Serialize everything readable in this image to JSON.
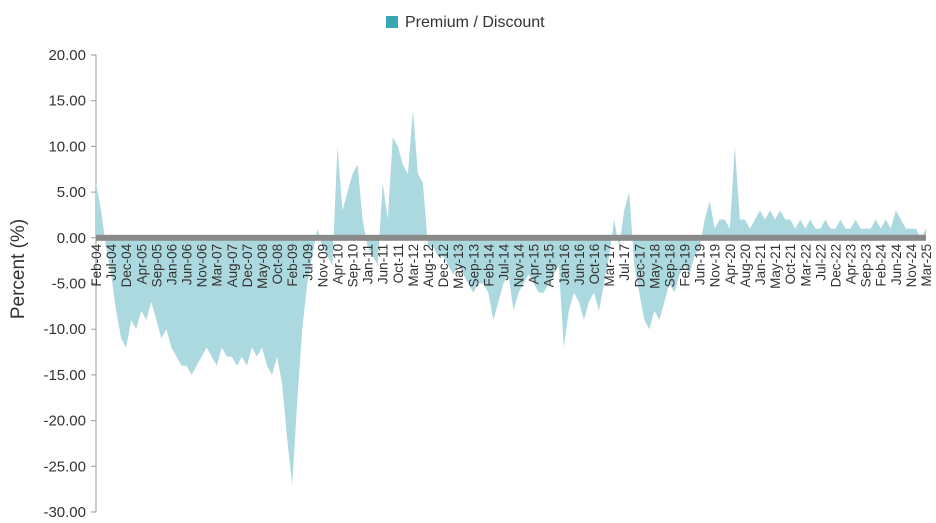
{
  "chart_data": {
    "type": "area",
    "y_label": "Percent (%)",
    "ylim": [
      -30,
      20
    ],
    "yticks": [
      {
        "value": 20,
        "label": "20.00"
      },
      {
        "value": 15,
        "label": "15.00"
      },
      {
        "value": 10,
        "label": "10.00"
      },
      {
        "value": 5,
        "label": "5.00"
      },
      {
        "value": 0,
        "label": "0.00"
      },
      {
        "value": -5,
        "label": "-5.00"
      },
      {
        "value": -10,
        "label": "-10.00"
      },
      {
        "value": -15,
        "label": "-15.00"
      },
      {
        "value": -20,
        "label": "-20.00"
      },
      {
        "value": -25,
        "label": "-25.00"
      },
      {
        "value": -30,
        "label": "-30.00"
      }
    ],
    "legend": "top",
    "categories": [
      "Feb-04",
      null,
      null,
      "Jul-04",
      null,
      null,
      "Dec-04",
      null,
      null,
      "Apr-05",
      null,
      null,
      "Sep-05",
      null,
      null,
      "Jan-06",
      null,
      null,
      "Jun-06",
      null,
      null,
      "Nov-06",
      null,
      null,
      "Mar-07",
      null,
      null,
      "Aug-07",
      null,
      null,
      "Dec-07",
      null,
      null,
      "May-08",
      null,
      null,
      "Oct-08",
      null,
      null,
      "Feb-09",
      null,
      null,
      "Jul-09",
      null,
      null,
      "Nov-09",
      null,
      null,
      "Apr-10",
      null,
      null,
      "Sep-10",
      null,
      null,
      "Jan-11",
      null,
      null,
      "Jun-11",
      null,
      null,
      "Oct-11",
      null,
      null,
      "Mar-12",
      null,
      null,
      "Aug-12",
      null,
      null,
      "Dec-12",
      null,
      null,
      "May-13",
      null,
      null,
      "Sep-13",
      null,
      null,
      "Feb-14",
      null,
      null,
      "Jul-14",
      null,
      null,
      "Nov-14",
      null,
      null,
      "Apr-15",
      null,
      null,
      "Aug-15",
      null,
      null,
      "Jan-16",
      null,
      null,
      "Jun-16",
      null,
      null,
      "Oct-16",
      null,
      null,
      "Mar-17",
      null,
      null,
      "Jul-17",
      null,
      null,
      "Dec-17",
      null,
      null,
      "May-18",
      null,
      null,
      "Sep-18",
      null,
      null,
      "Feb-19",
      null,
      null,
      "Jun-19",
      null,
      null,
      "Nov-19",
      null,
      null,
      "Apr-20",
      null,
      null,
      "Aug-20",
      null,
      null,
      "Jan-21",
      null,
      null,
      "May-21",
      null,
      null,
      "Oct-21",
      null,
      null,
      "Mar-22",
      null,
      null,
      "Jul-22",
      null,
      null,
      "Dec-22",
      null,
      null,
      "Apr-23",
      null,
      null,
      "Sep-23",
      null,
      null,
      "Feb-24",
      null,
      null,
      "Jun-24",
      null,
      null,
      "Nov-24",
      null,
      null,
      "Mar-25"
    ],
    "series": [
      {
        "name": "Premium / Discount",
        "color": "#3aa8b4",
        "fill": "#acd9df",
        "values": [
          6,
          3,
          -1,
          -4,
          -8,
          -11,
          -12,
          -9,
          -10,
          -8,
          -9,
          -7,
          -9,
          -11,
          -10,
          -12,
          -13,
          -14,
          -14,
          -15,
          -14,
          -13,
          -12,
          -13,
          -14,
          -12,
          -13,
          -13,
          -14,
          -13,
          -14,
          -12,
          -13,
          -12,
          -14,
          -15,
          -13,
          -16,
          -22,
          -27,
          -18,
          -10,
          -5,
          -2,
          1,
          -1,
          -2,
          -3,
          10,
          3,
          5,
          7,
          8,
          2,
          -1,
          -2,
          -3,
          6,
          2,
          11,
          10,
          8,
          7,
          14,
          7,
          6,
          -1,
          -1,
          -2,
          -2,
          -3,
          -4,
          -3,
          -4,
          -5,
          -6,
          -5,
          -5,
          -6,
          -9,
          -7,
          -5,
          -4,
          -8,
          -6,
          -5,
          -4,
          -5,
          -6,
          -6,
          -5,
          -4,
          -3,
          -12,
          -8,
          -6,
          -7,
          -9,
          -7,
          -6,
          -8,
          -5,
          -2,
          2,
          -1,
          3,
          5,
          -3,
          -6,
          -9,
          -10,
          -8,
          -9,
          -7,
          -5,
          -6,
          -4,
          -3,
          -4,
          -2,
          -1,
          2,
          4,
          1,
          2,
          2,
          1,
          10,
          2,
          2,
          1,
          2,
          3,
          2,
          3,
          2,
          3,
          2,
          2,
          1,
          2,
          1,
          2,
          1,
          1,
          2,
          1,
          1,
          2,
          1,
          1,
          2,
          1,
          1,
          1,
          2,
          1,
          2,
          1,
          3,
          2,
          1,
          1,
          1,
          0,
          1
        ]
      }
    ]
  }
}
